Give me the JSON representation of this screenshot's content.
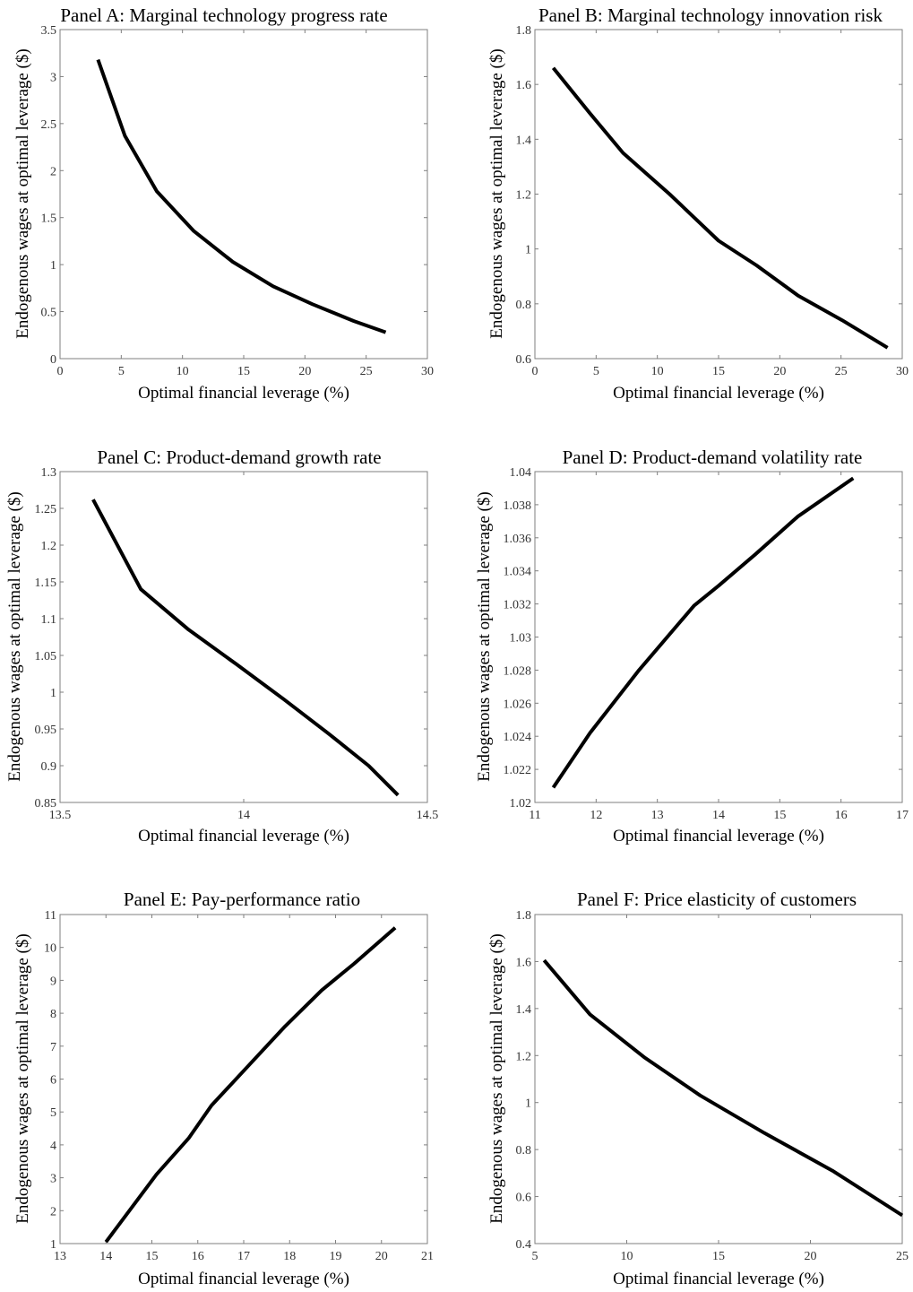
{
  "chart_data": [
    {
      "type": "line",
      "title": "Panel A: Marginal technology progress rate",
      "xlabel": "Optimal financial leverage (%)",
      "ylabel": "Endogenous wages at optimal leverage ($)",
      "xlim": [
        0,
        30
      ],
      "ylim": [
        0,
        3.5
      ],
      "xticks": [
        0,
        5,
        10,
        15,
        20,
        25,
        30
      ],
      "xtick_labels": [
        "0",
        "5",
        "10",
        "15",
        "20",
        "25",
        "30"
      ],
      "yticks": [
        0,
        0.5,
        1,
        1.5,
        2,
        2.5,
        3,
        3.5
      ],
      "ytick_labels": [
        "0",
        "0.5",
        "1",
        "1.5",
        "2",
        "2.5",
        "3",
        "3.5"
      ],
      "grid": false,
      "x": [
        3.1,
        5.3,
        7.9,
        10.9,
        14.1,
        17.4,
        20.6,
        24.0,
        26.6
      ],
      "y": [
        3.18,
        2.37,
        1.78,
        1.36,
        1.03,
        0.77,
        0.58,
        0.4,
        0.28
      ]
    },
    {
      "type": "line",
      "title": "Panel B: Marginal technology innovation risk",
      "xlabel": "Optimal financial leverage (%)",
      "ylabel": "Endogenous wages at optimal leverage ($)",
      "xlim": [
        0,
        30
      ],
      "ylim": [
        0.6,
        1.8
      ],
      "xticks": [
        0,
        5,
        10,
        15,
        20,
        25,
        30
      ],
      "xtick_labels": [
        "0",
        "5",
        "10",
        "15",
        "20",
        "25",
        "30"
      ],
      "yticks": [
        0.6,
        0.8,
        1,
        1.2,
        1.4,
        1.6,
        1.8
      ],
      "ytick_labels": [
        "0.6",
        "0.8",
        "1",
        "1.2",
        "1.4",
        "1.6",
        "1.8"
      ],
      "grid": false,
      "x": [
        1.5,
        4.4,
        7.2,
        11.0,
        15.0,
        18.1,
        21.5,
        25.1,
        28.8
      ],
      "y": [
        1.66,
        1.5,
        1.35,
        1.2,
        1.03,
        0.94,
        0.83,
        0.74,
        0.64
      ]
    },
    {
      "type": "line",
      "title": "Panel C: Product-demand growth rate",
      "xlabel": "Optimal financial leverage (%)",
      "ylabel": "Endogenous wages at optimal leverage ($)",
      "xlim": [
        13.5,
        14.5
      ],
      "ylim": [
        0.85,
        1.3
      ],
      "xticks": [
        13.5,
        14,
        14.5
      ],
      "xtick_labels": [
        "13.5",
        "14",
        "14.5"
      ],
      "yticks": [
        0.85,
        0.9,
        0.95,
        1,
        1.05,
        1.1,
        1.15,
        1.2,
        1.25,
        1.3
      ],
      "ytick_labels": [
        "0.85",
        "0.9",
        "0.95",
        "1",
        "1.05",
        "1.1",
        "1.15",
        "1.2",
        "1.25",
        "1.3"
      ],
      "grid": false,
      "x": [
        13.59,
        13.72,
        13.85,
        13.98,
        14.11,
        14.23,
        14.34,
        14.42
      ],
      "y": [
        1.262,
        1.14,
        1.085,
        1.038,
        0.99,
        0.944,
        0.9,
        0.86
      ]
    },
    {
      "type": "line",
      "title": "Panel D: Product-demand volatility rate",
      "xlabel": "Optimal financial leverage (%)",
      "ylabel": "Endogenous wages at optimal leverage ($)",
      "xlim": [
        11,
        17
      ],
      "ylim": [
        1.02,
        1.04
      ],
      "xticks": [
        11,
        12,
        13,
        14,
        15,
        16,
        17
      ],
      "xtick_labels": [
        "11",
        "12",
        "13",
        "14",
        "15",
        "16",
        "17"
      ],
      "yticks": [
        1.02,
        1.022,
        1.024,
        1.026,
        1.028,
        1.03,
        1.032,
        1.034,
        1.036,
        1.038,
        1.04
      ],
      "ytick_labels": [
        "1.02",
        "1.022",
        "1.024",
        "1.026",
        "1.028",
        "1.03",
        "1.032",
        "1.034",
        "1.036",
        "1.038",
        "1.04"
      ],
      "grid": false,
      "x": [
        11.3,
        11.9,
        12.7,
        13.6,
        14.0,
        14.6,
        15.3,
        16.2
      ],
      "y": [
        1.0209,
        1.0242,
        1.028,
        1.0319,
        1.0331,
        1.035,
        1.0373,
        1.0396
      ]
    },
    {
      "type": "line",
      "title": "Panel E: Pay-performance ratio",
      "xlabel": "Optimal financial leverage (%)",
      "ylabel": "Endogenous wages at optimal leverage ($)",
      "xlim": [
        13,
        21
      ],
      "ylim": [
        1,
        11
      ],
      "xticks": [
        13,
        14,
        15,
        16,
        17,
        18,
        19,
        20,
        21
      ],
      "xtick_labels": [
        "13",
        "14",
        "15",
        "16",
        "17",
        "18",
        "19",
        "20",
        "21"
      ],
      "yticks": [
        1,
        2,
        3,
        4,
        5,
        6,
        7,
        8,
        9,
        10,
        11
      ],
      "ytick_labels": [
        "1",
        "2",
        "3",
        "4",
        "5",
        "6",
        "7",
        "8",
        "9",
        "10",
        "11"
      ],
      "grid": false,
      "x": [
        14.0,
        15.1,
        15.8,
        16.3,
        17.1,
        17.9,
        18.7,
        19.4,
        20.3
      ],
      "y": [
        1.05,
        3.1,
        4.2,
        5.2,
        6.4,
        7.6,
        8.7,
        9.5,
        10.6
      ]
    },
    {
      "type": "line",
      "title": "Panel F: Price elasticity of customers",
      "xlabel": "Optimal financial leverage (%)",
      "ylabel": "Endogenous wages at optimal leverage ($)",
      "xlim": [
        5,
        25
      ],
      "ylim": [
        0.4,
        1.8
      ],
      "xticks": [
        5,
        10,
        15,
        20,
        25
      ],
      "xtick_labels": [
        "5",
        "10",
        "15",
        "20",
        "25"
      ],
      "yticks": [
        0.4,
        0.6,
        0.8,
        1,
        1.2,
        1.4,
        1.6,
        1.8
      ],
      "ytick_labels": [
        "0.4",
        "0.6",
        "0.8",
        "1",
        "1.2",
        "1.4",
        "1.6",
        "1.8"
      ],
      "grid": false,
      "x": [
        5.5,
        8.0,
        11.0,
        14.0,
        17.5,
        21.2,
        25.0
      ],
      "y": [
        1.605,
        1.375,
        1.19,
        1.03,
        0.87,
        0.71,
        0.52
      ]
    }
  ]
}
